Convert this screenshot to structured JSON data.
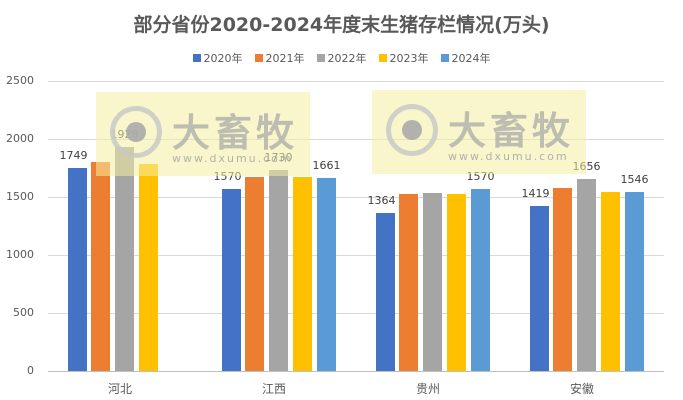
{
  "chart_data": {
    "type": "bar",
    "title": "部分省份2020-2024年度末生猪存栏情况(万头)",
    "xlabel": "",
    "ylabel": "",
    "ylim": [
      0,
      2500
    ],
    "yticks": [
      0,
      500,
      1000,
      1500,
      2000,
      2500
    ],
    "grid": true,
    "legend_position": "top",
    "categories": [
      "河北",
      "江西",
      "贵州",
      "安徽"
    ],
    "series": [
      {
        "name": "2020年",
        "color": "#4472C4",
        "values": [
          1749,
          1570,
          1364,
          1419
        ]
      },
      {
        "name": "2021年",
        "color": "#ED7D31",
        "values": [
          1805,
          1672,
          1527,
          1577
        ]
      },
      {
        "name": "2022年",
        "color": "#A5A5A5",
        "values": [
          1928,
          1730,
          1536,
          1656
        ]
      },
      {
        "name": "2023年",
        "color": "#FFC000",
        "values": [
          1785,
          1672,
          1527,
          1545
        ]
      },
      {
        "name": "2024年",
        "color": "#5B9BD5",
        "values": [
          null,
          1661,
          1570,
          1546
        ]
      }
    ],
    "data_labels": [
      {
        "category": "河北",
        "series": "2020年",
        "value": 1749
      },
      {
        "category": "河北",
        "series": "2022年",
        "value": 1928
      },
      {
        "category": "江西",
        "series": "2020年",
        "value": 1570
      },
      {
        "category": "江西",
        "series": "2022年",
        "value": 1730
      },
      {
        "category": "江西",
        "series": "2024年",
        "value": 1661
      },
      {
        "category": "贵州",
        "series": "2020年",
        "value": 1364
      },
      {
        "category": "贵州",
        "series": "2024年",
        "value": 1570
      },
      {
        "category": "安徽",
        "series": "2020年",
        "value": 1419
      },
      {
        "category": "安徽",
        "series": "2022年",
        "value": 1656
      },
      {
        "category": "安徽",
        "series": "2024年",
        "value": 1546
      }
    ]
  },
  "watermark": {
    "brand": "大畜牧",
    "url": "www.dxumu.com"
  }
}
